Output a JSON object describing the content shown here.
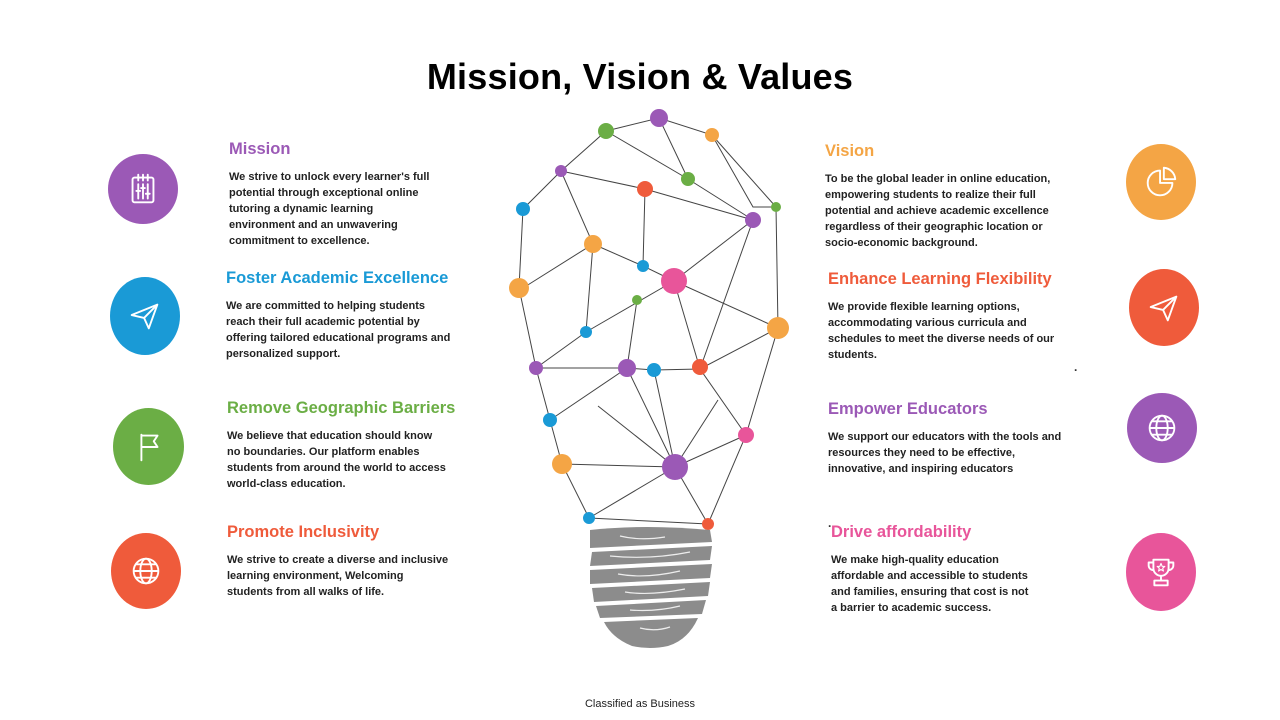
{
  "title": "Mission, Vision & Values",
  "footer": "Classified as Business",
  "colors": {
    "purple": "#9B59B6",
    "blue": "#1A9AD6",
    "green": "#6BAE45",
    "orange_red": "#EF5B3B",
    "amber": "#F4A545",
    "pink": "#E8559A",
    "bulb_base": "#8C8C8C"
  },
  "left": [
    {
      "heading": "Mission",
      "text": "We strive to unlock every learner's full\npotential through exceptional online\ntutoring a dynamic learning\nenvironment and an unwavering\ncommitment to excellence.",
      "icon": "planner-icon"
    },
    {
      "heading": "Foster Academic Excellence",
      "text": "We are committed to helping students\nreach their full academic potential by\noffering tailored educational programs and\npersonalized support.",
      "icon": "paper-plane-icon"
    },
    {
      "heading": "Remove Geographic Barriers",
      "text": "We believe that education should know\nno boundaries. Our platform enables\nstudents from around the world to access\nworld-class education.",
      "icon": "flag-icon"
    },
    {
      "heading": "Promote Inclusivity",
      "text": "We strive to create a diverse and inclusive\nlearning environment, Welcoming\nstudents from all walks of life.",
      "icon": "globe-icon"
    }
  ],
  "right": [
    {
      "heading": "Vision",
      "text": "To be the global leader in online education,\nempowering students to realize their full\npotential and achieve academic excellence\nregardless of their geographic location or\nsocio-economic background.",
      "icon": "pie-chart-icon"
    },
    {
      "heading": "Enhance Learning Flexibility",
      "text": "We provide flexible learning options,\naccommodating various curricula and\nschedules to meet the diverse needs of our\nstudents.",
      "icon": "paper-plane-icon"
    },
    {
      "heading": "Empower Educators",
      "text": "We support our educators with the tools and\nresources they need to be effective,\ninnovative, and inspiring educators",
      "icon": "globe-icon"
    },
    {
      "heading": "Drive affordability",
      "text": "We make high-quality education\naffordable and accessible to students\nand families, ensuring that cost is not\na barrier to academic success.",
      "icon": "trophy-icon"
    }
  ],
  "stray_marks": [
    ".",
    "."
  ]
}
